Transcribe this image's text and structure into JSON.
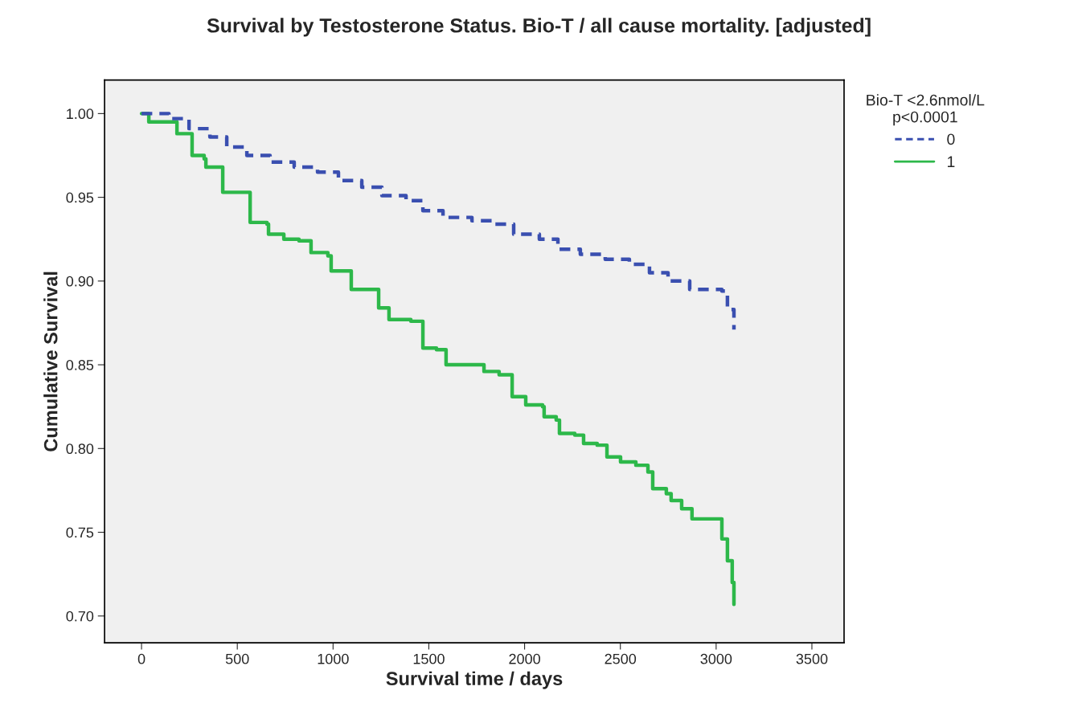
{
  "chart_data": {
    "type": "step",
    "title": "Survival by Testosterone Status. Bio-T / all cause mortality. [adjusted]",
    "xlabel": "Survival time / days",
    "ylabel": "Cumulative Survival",
    "legend_title": "Bio-T <2.6nmol/L\np<0.0001",
    "legend": "top right",
    "grid": false,
    "xlim": [
      -193,
      3668
    ],
    "xticks": [
      0,
      500,
      1000,
      1500,
      2000,
      2500,
      3000,
      3500
    ],
    "ylim": [
      0.684,
      1.02
    ],
    "yticks": [
      {
        "value": 0.7,
        "label": "0.70"
      },
      {
        "value": 0.75,
        "label": "0.75"
      },
      {
        "value": 0.8,
        "label": "0.80"
      },
      {
        "value": 0.85,
        "label": "0.85"
      },
      {
        "value": 0.9,
        "label": "0.90"
      },
      {
        "value": 0.95,
        "label": "0.95"
      },
      {
        "value": 1.0,
        "label": "1.00"
      }
    ],
    "series": [
      {
        "name": "0",
        "color": "#3a4fb0",
        "line_style": "dashed",
        "x": [
          0,
          143,
          248,
          357,
          445,
          550,
          671,
          797,
          919,
          1028,
          1150,
          1255,
          1381,
          1469,
          1574,
          1725,
          1846,
          1943,
          2077,
          2174,
          2291,
          2421,
          2547,
          2652,
          2749,
          2862,
          3030,
          3059,
          3093
        ],
        "values": [
          1.0,
          0.997,
          0.991,
          0.986,
          0.98,
          0.975,
          0.971,
          0.968,
          0.965,
          0.96,
          0.956,
          0.951,
          0.948,
          0.942,
          0.938,
          0.936,
          0.934,
          0.928,
          0.925,
          0.919,
          0.916,
          0.913,
          0.91,
          0.905,
          0.9,
          0.895,
          0.894,
          0.883,
          0.871
        ]
      },
      {
        "name": "1",
        "color": "#2db84a",
        "line_style": "solid",
        "x": [
          0,
          38,
          185,
          264,
          327,
          336,
          424,
          567,
          655,
          663,
          743,
          822,
          885,
          973,
          990,
          1095,
          1175,
          1238,
          1292,
          1406,
          1469,
          1540,
          1590,
          1775,
          1788,
          1867,
          1935,
          2006,
          2094,
          2102,
          2165,
          2182,
          2262,
          2308,
          2379,
          2430,
          2501,
          2581,
          2644,
          2669,
          2740,
          2765,
          2820,
          2874,
          3021,
          3030,
          3059,
          3084,
          3093
        ],
        "values": [
          1.0,
          0.995,
          0.988,
          0.975,
          0.973,
          0.968,
          0.953,
          0.935,
          0.934,
          0.928,
          0.925,
          0.924,
          0.917,
          0.915,
          0.906,
          0.895,
          0.895,
          0.884,
          0.877,
          0.876,
          0.86,
          0.859,
          0.85,
          0.85,
          0.846,
          0.844,
          0.831,
          0.826,
          0.825,
          0.819,
          0.817,
          0.809,
          0.808,
          0.803,
          0.802,
          0.795,
          0.792,
          0.79,
          0.786,
          0.776,
          0.773,
          0.769,
          0.764,
          0.758,
          0.758,
          0.746,
          0.733,
          0.72,
          0.707
        ]
      }
    ]
  }
}
